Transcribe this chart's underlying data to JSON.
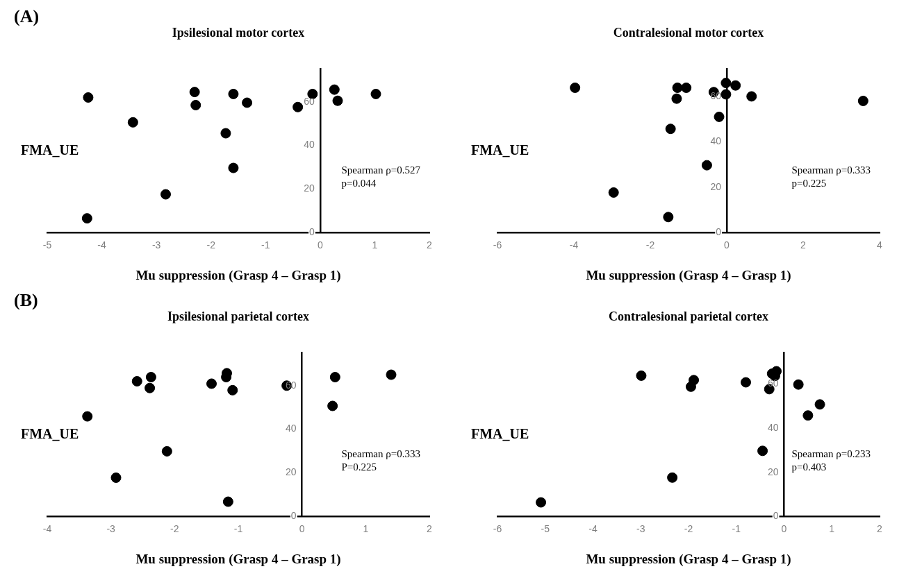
{
  "chart_data": [
    {
      "type": "scatter",
      "title": "Ipsilesional motor cortex",
      "xlabel": "Mu suppression (Grasp 4 – Grasp 1)",
      "ylabel": "FMA_UE",
      "color": "#000000",
      "marker": "circle",
      "grid": false,
      "xlim": [
        -5,
        2
      ],
      "xticks": [
        -5,
        -4,
        -3,
        -2,
        -1,
        0,
        1,
        2
      ],
      "ylim": [
        0,
        75
      ],
      "yticks": [
        0,
        20,
        40,
        60
      ],
      "x": [
        -4.25,
        -2.3,
        -2.28,
        -1.59,
        -1.34,
        -0.41,
        -0.14,
        0.26,
        0.32,
        1.02,
        -3.43,
        -1.73,
        -1.59,
        -2.83,
        -4.27
      ],
      "values": [
        62,
        64.5,
        58.5,
        63.6,
        59.6,
        57.6,
        63.6,
        65.6,
        60.5,
        63.6,
        50.6,
        45.6,
        29.7,
        17.6,
        6.6
      ],
      "annotations": [
        "(A)",
        "Spearman ρ=0.527",
        "p=0.044"
      ]
    },
    {
      "type": "scatter",
      "title": "Contralesional motor cortex",
      "xlabel": "Mu suppression (Grasp 4 – Grasp 1)",
      "ylabel": "FMA_UE",
      "color": "#000000",
      "marker": "circle",
      "grid": false,
      "xlim": [
        -6,
        4
      ],
      "xticks": [
        -6,
        -4,
        -2,
        0,
        2,
        4
      ],
      "ylim": [
        0,
        72
      ],
      "yticks": [
        0,
        20,
        40,
        60
      ],
      "x": [
        -3.97,
        -1.29,
        -1.06,
        -1.31,
        -0.34,
        -0.02,
        -0.02,
        0.23,
        0.65,
        3.57,
        -0.2,
        -1.47,
        -0.52,
        -2.96,
        -1.53
      ],
      "values": [
        63.8,
        63.8,
        63.8,
        59,
        61.9,
        65.9,
        60.9,
        64.8,
        60,
        58,
        51,
        45.7,
        29.7,
        17.7,
        6.9
      ],
      "annotations": [
        "Spearman ρ=0.333",
        "p=0.225"
      ]
    },
    {
      "type": "scatter",
      "title": "Ipsilesional parietal cortex",
      "xlabel": "Mu suppression (Grasp 4 – Grasp 1)",
      "ylabel": "FMA_UE",
      "color": "#000000",
      "marker": "circle",
      "grid": false,
      "xlim": [
        -4,
        2
      ],
      "xticks": [
        -4,
        -3,
        -2,
        -1,
        0,
        1,
        2
      ],
      "ylim": [
        0,
        75
      ],
      "yticks": [
        0,
        20,
        40,
        60
      ],
      "x": [
        -2.59,
        -2.37,
        -2.39,
        -1.42,
        -1.18,
        -1.19,
        -1.09,
        -0.24,
        0.52,
        1.4,
        0.48,
        -3.37,
        -2.12,
        -2.92,
        -1.16
      ],
      "values": [
        62,
        63.9,
        58.9,
        60.9,
        65.7,
        63.9,
        57.9,
        60,
        63.9,
        65,
        50.7,
        45.9,
        29.9,
        17.8,
        6.8
      ],
      "annotations": [
        "(B)",
        "Spearman ρ=0.333",
        "P=0.225"
      ]
    },
    {
      "type": "scatter",
      "title": "Contralesional parietal cortex",
      "xlabel": "Mu suppression (Grasp 4 – Grasp 1)",
      "ylabel": "FMA_UE",
      "color": "#000000",
      "marker": "circle",
      "grid": false,
      "xlim": [
        -6,
        2
      ],
      "xticks": [
        -6,
        -5,
        -4,
        -3,
        -2,
        -1,
        0,
        1,
        2
      ],
      "ylim": [
        0,
        74
      ],
      "yticks": [
        0,
        20,
        40,
        60
      ],
      "x": [
        -2.99,
        -1.89,
        -1.95,
        -0.8,
        -0.31,
        -0.25,
        -0.16,
        -0.19,
        0.3,
        0.75,
        0.5,
        -0.45,
        -2.34,
        -5.09
      ],
      "values": [
        63.7,
        61.7,
        58.7,
        60.7,
        57.6,
        64.6,
        65.7,
        63.6,
        59.7,
        50.7,
        45.7,
        29.7,
        17.6,
        6.4
      ],
      "annotations": [
        "Spearman ρ=0.233",
        "p=0.403"
      ]
    }
  ]
}
